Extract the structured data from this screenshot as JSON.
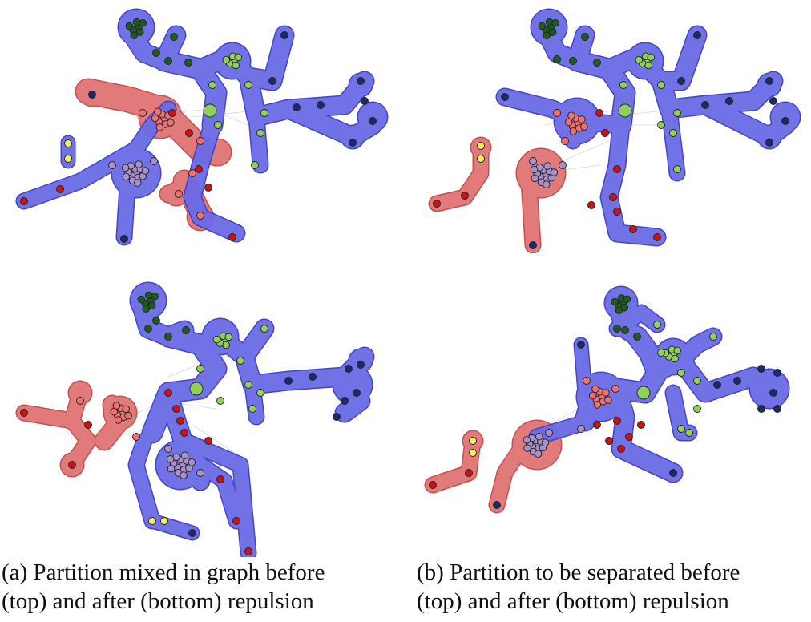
{
  "captions": {
    "a": {
      "line1": "(a) Partition mixed in graph before",
      "line2": "(top) and after (bottom) repulsion"
    },
    "b": {
      "line1": "(b) Partition to be separated before",
      "line2": "(top) and after (bottom) repulsion"
    }
  },
  "colors": {
    "blue_region_fill": "#6b6be6",
    "blue_region_stroke": "#3b3bc4",
    "red_region_fill": "#e07474",
    "red_region_stroke": "#c84444",
    "node_dark_green": "#1f5a1f",
    "node_light_green": "#8fcf5a",
    "node_red": "#c81414",
    "node_salmon": "#f07070",
    "node_purple": "#a890c8",
    "node_navy": "#1a2a6a",
    "node_yellow": "#f0f060"
  }
}
